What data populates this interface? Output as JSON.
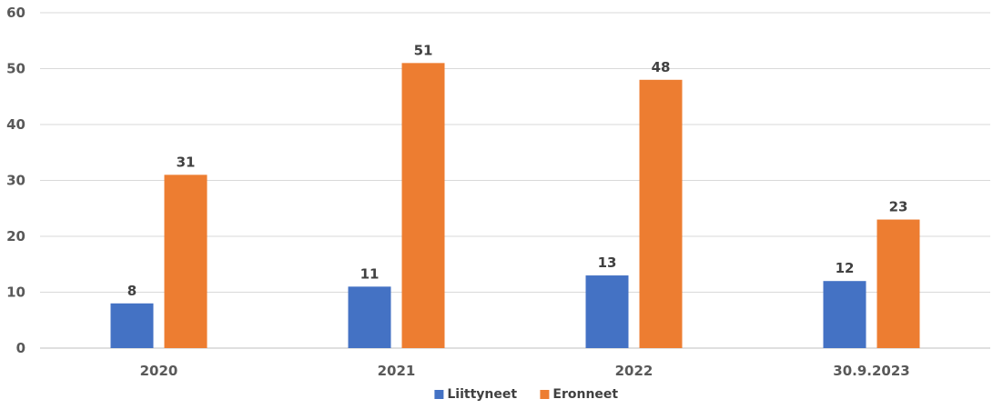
{
  "chart_data": {
    "type": "bar",
    "categories": [
      "2020",
      "2021",
      "2022",
      "30.9.2023"
    ],
    "series": [
      {
        "name": "Liittyneet",
        "color": "#4472C4",
        "values": [
          8,
          11,
          13,
          12
        ]
      },
      {
        "name": "Eronneet",
        "color": "#ED7D31",
        "values": [
          31,
          51,
          48,
          23
        ]
      }
    ],
    "ylim": [
      0,
      60
    ],
    "yticks": [
      0,
      10,
      20,
      30,
      40,
      50,
      60
    ],
    "grid": true,
    "legend_position": "bottom",
    "data_labels": true
  }
}
